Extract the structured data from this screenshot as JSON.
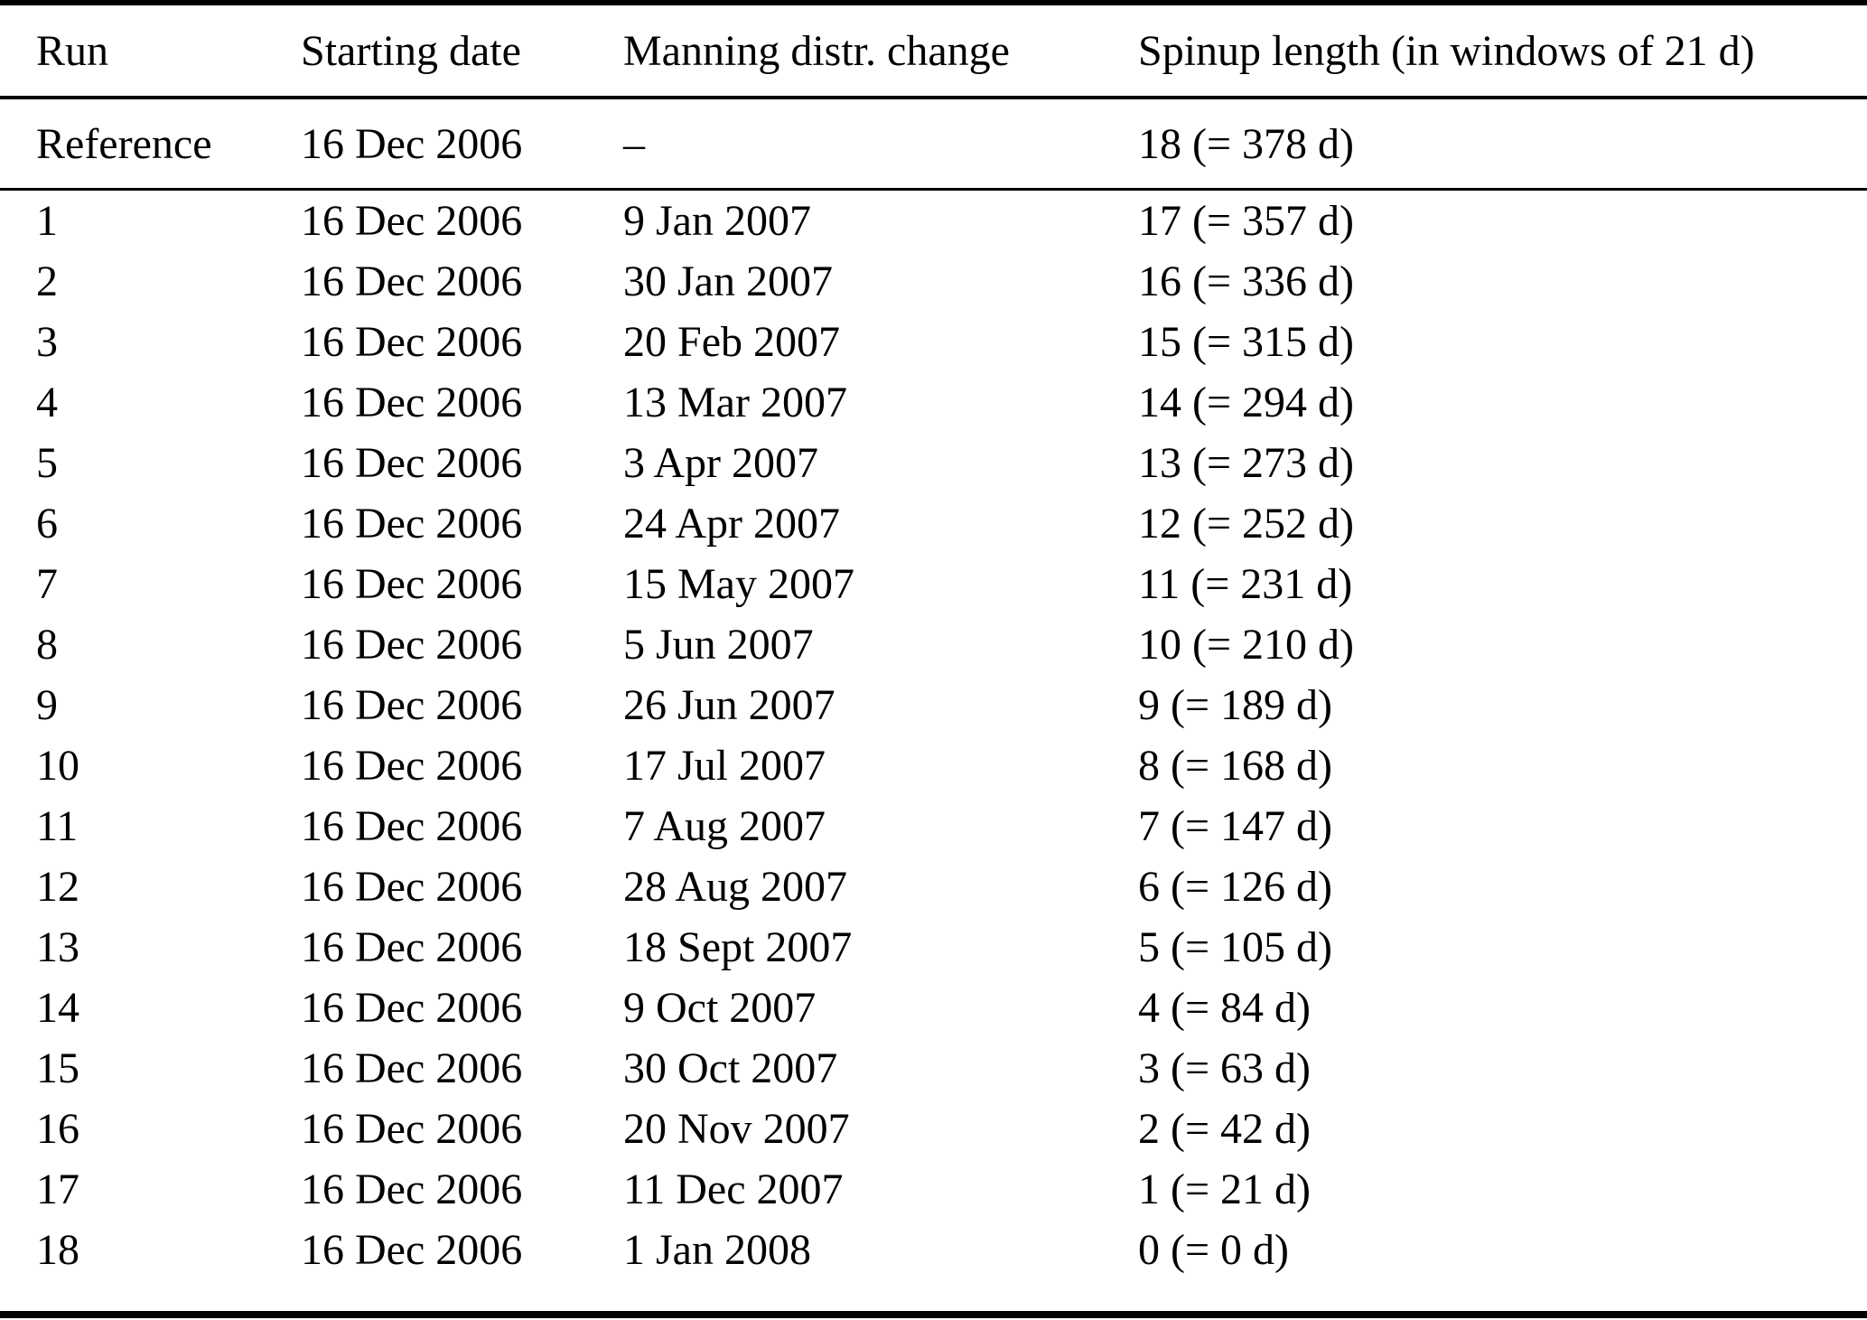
{
  "table": {
    "columns": [
      "Run",
      "Starting date",
      "Manning distr. change",
      "Spinup length (in windows of 21 d)"
    ],
    "reference_row": {
      "run": "Reference",
      "starting_date": "16 Dec 2006",
      "manning_change": "–",
      "spinup": "18 (= 378 d)"
    },
    "rows": [
      {
        "run": "1",
        "starting_date": "16 Dec 2006",
        "manning_change": "9 Jan 2007",
        "spinup": "17 (= 357 d)"
      },
      {
        "run": "2",
        "starting_date": "16 Dec 2006",
        "manning_change": "30 Jan 2007",
        "spinup": "16 (= 336 d)"
      },
      {
        "run": "3",
        "starting_date": "16 Dec 2006",
        "manning_change": "20 Feb 2007",
        "spinup": "15 (= 315 d)"
      },
      {
        "run": "4",
        "starting_date": "16 Dec 2006",
        "manning_change": "13 Mar 2007",
        "spinup": "14 (= 294 d)"
      },
      {
        "run": "5",
        "starting_date": "16 Dec 2006",
        "manning_change": "3 Apr 2007",
        "spinup": "13 (= 273 d)"
      },
      {
        "run": "6",
        "starting_date": "16 Dec 2006",
        "manning_change": "24 Apr 2007",
        "spinup": "12 (= 252 d)"
      },
      {
        "run": "7",
        "starting_date": "16 Dec 2006",
        "manning_change": "15 May 2007",
        "spinup": "11 (= 231 d)"
      },
      {
        "run": "8",
        "starting_date": "16 Dec 2006",
        "manning_change": "5 Jun 2007",
        "spinup": "10 (= 210 d)"
      },
      {
        "run": "9",
        "starting_date": "16 Dec 2006",
        "manning_change": "26 Jun 2007",
        "spinup": "9 (= 189 d)"
      },
      {
        "run": "10",
        "starting_date": "16 Dec 2006",
        "manning_change": "17 Jul 2007",
        "spinup": "8 (= 168 d)"
      },
      {
        "run": "11",
        "starting_date": "16 Dec 2006",
        "manning_change": "7 Aug 2007",
        "spinup": "7 (= 147 d)"
      },
      {
        "run": "12",
        "starting_date": "16 Dec 2006",
        "manning_change": "28 Aug 2007",
        "spinup": "6 (= 126 d)"
      },
      {
        "run": "13",
        "starting_date": "16 Dec 2006",
        "manning_change": "18 Sept 2007",
        "spinup": "5 (= 105 d)"
      },
      {
        "run": "14",
        "starting_date": "16 Dec 2006",
        "manning_change": "9 Oct 2007",
        "spinup": "4 (= 84 d)"
      },
      {
        "run": "15",
        "starting_date": "16 Dec 2006",
        "manning_change": "30 Oct 2007",
        "spinup": "3 (= 63 d)"
      },
      {
        "run": "16",
        "starting_date": "16 Dec 2006",
        "manning_change": "20 Nov 2007",
        "spinup": "2 (= 42 d)"
      },
      {
        "run": "17",
        "starting_date": "16 Dec 2006",
        "manning_change": "11 Dec 2007",
        "spinup": "1 (= 21 d)"
      },
      {
        "run": "18",
        "starting_date": "16 Dec 2006",
        "manning_change": "1 Jan 2008",
        "spinup": "0 (= 0 d)"
      }
    ]
  }
}
